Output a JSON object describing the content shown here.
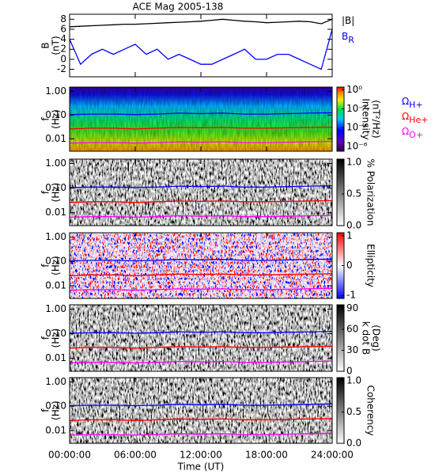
{
  "chart_data": [
    {
      "type": "line",
      "title": "ACE Mag 2005-138",
      "ylabel": [
        "B",
        "(nT)"
      ],
      "x": [
        0,
        1,
        2,
        3,
        4,
        5,
        6,
        7,
        8,
        9,
        10,
        11,
        12,
        13,
        14,
        15,
        16,
        17,
        18,
        19,
        20,
        21,
        22,
        23,
        24
      ],
      "ylim": [
        -3.5,
        9
      ],
      "yticks": [
        -2,
        0,
        2,
        4,
        6,
        8
      ],
      "series": [
        {
          "name": "|B|",
          "color": "#000000",
          "values": [
            6.5,
            6.6,
            6.7,
            6.8,
            6.9,
            7.0,
            7.0,
            7.1,
            7.2,
            7.3,
            7.4,
            7.5,
            7.6,
            7.8,
            8.0,
            7.8,
            7.6,
            7.5,
            7.3,
            7.4,
            7.5,
            7.6,
            7.5,
            7.1,
            8.0
          ]
        },
        {
          "name": "B",
          "subscript": "R",
          "color": "#0000ff",
          "values": [
            4,
            -1,
            1,
            2,
            1,
            2,
            3,
            1,
            2,
            0,
            1,
            0,
            -1,
            -1,
            0,
            1,
            2,
            0,
            0,
            1,
            1,
            0,
            -1,
            -2,
            6
          ]
        }
      ]
    },
    {
      "type": "spectrogram",
      "ylabel": [
        "f",
        "(Hz)"
      ],
      "colormap": "rainbow",
      "log_y": true,
      "x": [
        0,
        2,
        4,
        6,
        8,
        10,
        12,
        14,
        16,
        18,
        20,
        22,
        24
      ],
      "ylim": [
        0.003,
        1.5
      ],
      "yticks": [
        0.01,
        {
          "value": 0.1,
          "label": "0.10"
        },
        {
          "value": 1,
          "label": "1.00"
        }
      ],
      "clim": [
        -6.5,
        0.3
      ],
      "cticks": [
        {
          "value": 0,
          "label": "10⁰"
        },
        {
          "value": -2,
          "label": "10⁻²"
        },
        {
          "value": -4,
          "label": "10⁻⁴"
        },
        {
          "value": -6,
          "label": "10⁻⁶"
        }
      ],
      "clabel": [
        "Intensity",
        "(nT²/Hz)"
      ],
      "series": [
        {
          "name": "Ω",
          "subscript": "H+",
          "color": "#0000ff",
          "values": [
            0.105,
            0.11,
            0.11,
            0.105,
            0.11,
            0.12,
            0.115,
            0.12,
            0.11,
            0.11,
            0.115,
            0.12,
            0.125
          ]
        },
        {
          "name": "Ω",
          "subscript": "He+",
          "color": "#ff0000",
          "values": [
            0.026,
            0.028,
            0.028,
            0.026,
            0.028,
            0.03,
            0.029,
            0.03,
            0.028,
            0.028,
            0.029,
            0.03,
            0.031
          ]
        },
        {
          "name": "Ω",
          "subscript": "O+",
          "color": "#ff00ff",
          "values": [
            0.0066,
            0.0069,
            0.0069,
            0.0066,
            0.0069,
            0.0075,
            0.0072,
            0.0075,
            0.0069,
            0.0069,
            0.0072,
            0.0075,
            0.0078
          ]
        }
      ]
    },
    {
      "type": "spectrogram",
      "ylabel": [
        "f",
        "(Hz)"
      ],
      "colormap": "gray",
      "log_y": true,
      "x": [
        0,
        2,
        4,
        6,
        8,
        10,
        12,
        14,
        16,
        18,
        20,
        22,
        24
      ],
      "ylim": [
        0.003,
        1.5
      ],
      "yticks": [
        0.01,
        {
          "value": 0.1,
          "label": "0.10"
        },
        {
          "value": 1,
          "label": "1.00"
        }
      ],
      "clim": [
        0,
        1.05
      ],
      "cticks": [
        {
          "value": 0,
          "label": "0.0"
        },
        0.5,
        {
          "value": 1,
          "label": "1.0"
        }
      ],
      "clabel": [
        "% Polarization"
      ],
      "series": [
        {
          "color": "#0000ff",
          "values": [
            0.105,
            0.11,
            0.11,
            0.105,
            0.11,
            0.12,
            0.115,
            0.12,
            0.11,
            0.11,
            0.115,
            0.12,
            0.125
          ]
        },
        {
          "color": "#ff0000",
          "values": [
            0.026,
            0.028,
            0.028,
            0.026,
            0.028,
            0.03,
            0.029,
            0.03,
            0.028,
            0.028,
            0.029,
            0.03,
            0.031
          ]
        },
        {
          "color": "#ff00ff",
          "values": [
            0.0066,
            0.0069,
            0.0069,
            0.0066,
            0.0069,
            0.0075,
            0.0072,
            0.0075,
            0.0069,
            0.0069,
            0.0072,
            0.0075,
            0.0078
          ]
        }
      ]
    },
    {
      "type": "spectrogram",
      "ylabel": [
        "f",
        "(Hz)"
      ],
      "colormap": "bwr",
      "log_y": true,
      "x": [
        0,
        2,
        4,
        6,
        8,
        10,
        12,
        14,
        16,
        18,
        20,
        22,
        24
      ],
      "ylim": [
        0.003,
        1.5
      ],
      "yticks": [
        0.01,
        {
          "value": 0.1,
          "label": "0.10"
        },
        {
          "value": 1,
          "label": "1.00"
        }
      ],
      "clim": [
        -1.1,
        1.1
      ],
      "cticks": [
        -1,
        0,
        1
      ],
      "clabel": [
        "Ellipticity"
      ],
      "series": [
        {
          "color": "#0000ff",
          "values": [
            0.105,
            0.11,
            0.11,
            0.105,
            0.11,
            0.12,
            0.115,
            0.12,
            0.11,
            0.11,
            0.115,
            0.12,
            0.125
          ]
        },
        {
          "color": "#ff0000",
          "values": [
            0.026,
            0.028,
            0.028,
            0.026,
            0.028,
            0.03,
            0.029,
            0.03,
            0.028,
            0.028,
            0.029,
            0.03,
            0.031
          ]
        },
        {
          "color": "#ff00ff",
          "values": [
            0.0066,
            0.0069,
            0.0069,
            0.0066,
            0.0069,
            0.0075,
            0.0072,
            0.0075,
            0.0069,
            0.0069,
            0.0072,
            0.0075,
            0.0078
          ]
        }
      ]
    },
    {
      "type": "spectrogram",
      "ylabel": [
        "f",
        "(Hz)"
      ],
      "colormap": "gray",
      "log_y": true,
      "x": [
        0,
        2,
        4,
        6,
        8,
        10,
        12,
        14,
        16,
        18,
        20,
        22,
        24
      ],
      "ylim": [
        0.003,
        1.5
      ],
      "yticks": [
        0.01,
        {
          "value": 0.1,
          "label": "0.10"
        },
        {
          "value": 1,
          "label": "1.00"
        }
      ],
      "clim": [
        0,
        95
      ],
      "cticks": [
        0,
        30,
        60,
        90
      ],
      "clabel": [
        "k dot B",
        "(Deg)"
      ],
      "series": [
        {
          "color": "#0000ff",
          "values": [
            0.105,
            0.11,
            0.11,
            0.105,
            0.11,
            0.12,
            0.115,
            0.12,
            0.11,
            0.11,
            0.115,
            0.12,
            0.125
          ]
        },
        {
          "color": "#ff0000",
          "values": [
            0.026,
            0.028,
            0.028,
            0.026,
            0.028,
            0.03,
            0.029,
            0.03,
            0.028,
            0.028,
            0.029,
            0.03,
            0.031
          ]
        },
        {
          "color": "#ff00ff",
          "values": [
            0.0066,
            0.0069,
            0.0069,
            0.0066,
            0.0069,
            0.0075,
            0.0072,
            0.0075,
            0.0069,
            0.0069,
            0.0072,
            0.0075,
            0.0078
          ]
        }
      ]
    },
    {
      "type": "spectrogram",
      "ylabel": [
        "f",
        "(Hz)"
      ],
      "colormap": "gray",
      "log_y": true,
      "x": [
        0,
        2,
        4,
        6,
        8,
        10,
        12,
        14,
        16,
        18,
        20,
        22,
        24
      ],
      "ylim": [
        0.003,
        1.5
      ],
      "yticks": [
        0.01,
        {
          "value": 0.1,
          "label": "0.10"
        },
        {
          "value": 1,
          "label": "1.00"
        }
      ],
      "clim": [
        0,
        1.05
      ],
      "cticks": [
        {
          "value": 0,
          "label": "0.0"
        },
        0.5,
        {
          "value": 1,
          "label": "1.0"
        }
      ],
      "clabel": [
        "Coherency"
      ],
      "xlim": [
        0,
        24
      ],
      "xlabel": "Time (UT)",
      "xticks": [
        {
          "value": 0,
          "label": "00:00:00"
        },
        {
          "value": 6,
          "label": "06:00:00"
        },
        {
          "value": 12,
          "label": "12:00:00"
        },
        {
          "value": 18,
          "label": "18:00:00"
        },
        {
          "value": 24,
          "label": "24:00:00"
        }
      ],
      "series": [
        {
          "color": "#0000ff",
          "values": [
            0.105,
            0.11,
            0.11,
            0.105,
            0.11,
            0.12,
            0.115,
            0.12,
            0.11,
            0.11,
            0.115,
            0.12,
            0.125
          ]
        },
        {
          "color": "#ff0000",
          "values": [
            0.026,
            0.028,
            0.028,
            0.026,
            0.028,
            0.03,
            0.029,
            0.03,
            0.028,
            0.028,
            0.029,
            0.03,
            0.031
          ]
        },
        {
          "color": "#ff00ff",
          "values": [
            0.0066,
            0.0069,
            0.0069,
            0.0066,
            0.0069,
            0.0075,
            0.0072,
            0.0075,
            0.0069,
            0.0069,
            0.0072,
            0.0075,
            0.0078
          ]
        }
      ]
    }
  ]
}
